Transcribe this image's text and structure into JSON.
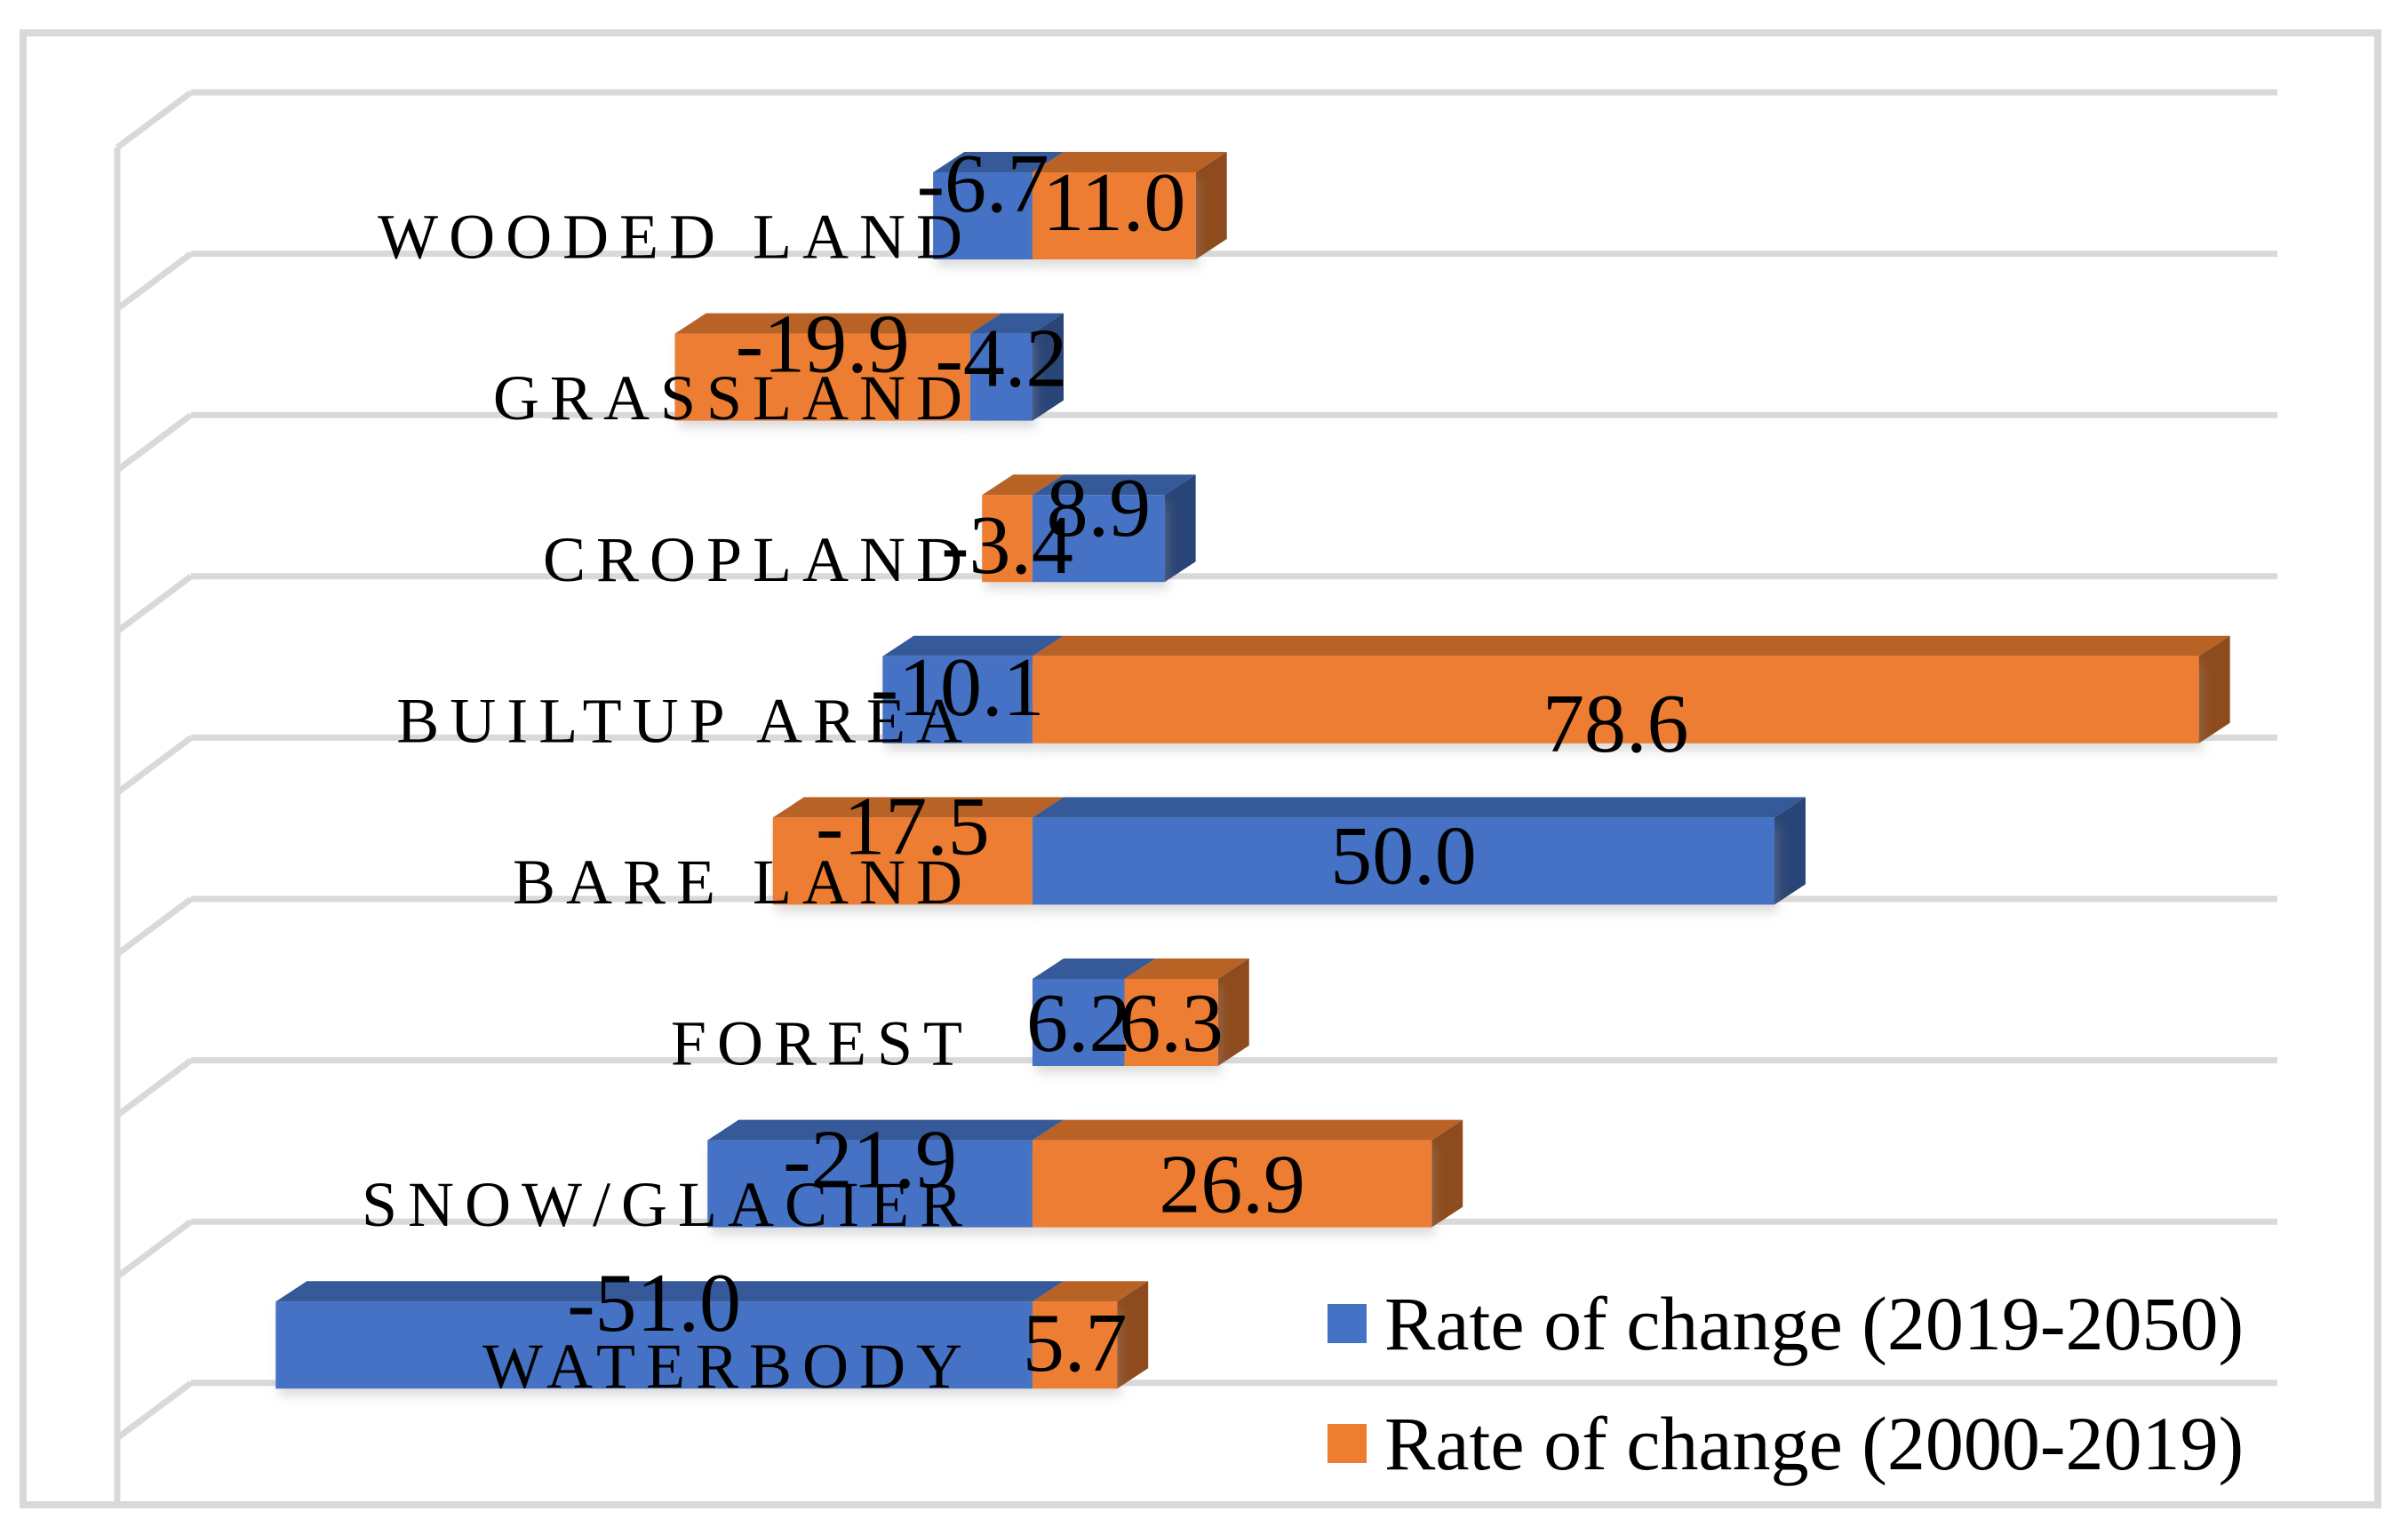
{
  "figure": {
    "background": "#FFFFFF",
    "border_color": "#D9D9D9",
    "gridline_color": "#D9D9D9",
    "text_color": "#000000"
  },
  "chart_data": {
    "type": "bar",
    "subtype": "3d-horizontal-stacked",
    "title": "",
    "categories": [
      "WOODED LAND",
      "GRASSLAND",
      "CROPLAND",
      "BUILTUP AREA",
      "BARE LAND",
      "FOREST",
      "SNOW/GLACIER",
      "WATERBODY"
    ],
    "series": [
      {
        "name": "Rate of change (2019-2050)",
        "color": "#4472C4",
        "values": [
          -6.7,
          -4.2,
          8.9,
          -10.1,
          50.0,
          6.2,
          -21.9,
          -51.0
        ],
        "labels": [
          "-6.7",
          "-4.2",
          "8.9",
          "-10.1",
          "50.0",
          "6.2",
          "-21.9",
          "-51.0"
        ]
      },
      {
        "name": "Rate of change (2000-2019)",
        "color": "#ED7D31",
        "values": [
          11.0,
          -19.9,
          -3.4,
          78.6,
          -17.5,
          6.3,
          26.9,
          5.7
        ],
        "labels": [
          "11.0",
          "-19.9",
          "-3.4",
          "78.6",
          "-17.5",
          "6.3",
          "26.9",
          "5.7"
        ]
      }
    ],
    "data_labels": {
      "visible": true,
      "decimals": 1,
      "color": "#000000"
    },
    "legend": {
      "position": "bottom-right",
      "marker": "square"
    },
    "axis": {
      "value_axis_visible": false,
      "approx_value_range": [
        -61,
        84
      ],
      "category_axis_side": "left",
      "gridlines": "category-separators",
      "zero_at_label_edge": true
    },
    "layout_hints": {
      "note": "label_dy = vertical center offset of each data label from bar face top, per row, [series1, series2]",
      "label_dy": [
        [
          13,
          34
        ],
        [
          28,
          12
        ],
        [
          15,
          57
        ],
        [
          35,
          76
        ],
        [
          43,
          10
        ],
        [
          50,
          50
        ],
        [
          22,
          50
        ],
        [
          2,
          47
        ]
      ]
    }
  }
}
